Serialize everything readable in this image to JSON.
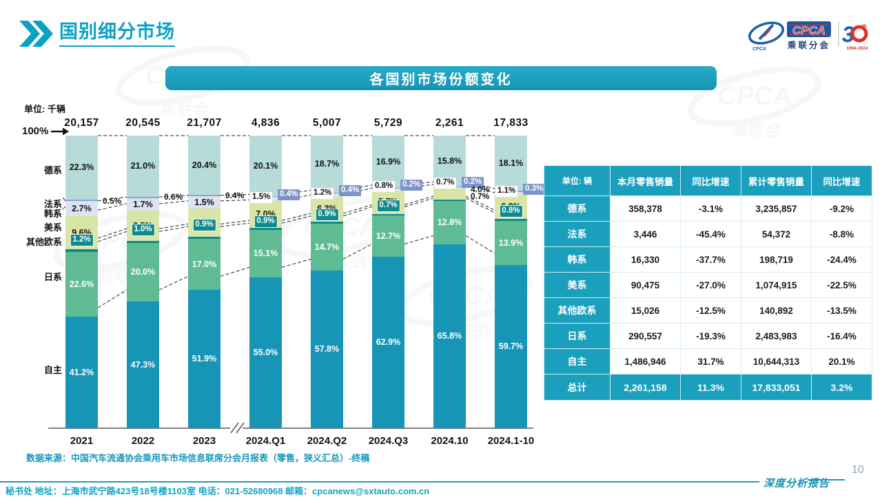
{
  "page": {
    "title": "国别细分市场",
    "unit_label": "单位: 千辆",
    "source_note": "数据来源：中国汽车流通协会乘用车市场信息联席分会月报表（零售，狭义汇总）-终稿",
    "report_tag": "深度分析报告",
    "page_number": "10",
    "footer": "秘书处  地址：上海市武宁路423号18号楼1103室  电话：021-52680968   邮箱：cpcanews@sxtauto.com.cn"
  },
  "logo": {
    "cpca": "CPCA",
    "cpca_small": "CPCA",
    "sub": "乘联分会",
    "anniv_3": "3",
    "anniv_th": "th",
    "anniv_years": "1994-2024"
  },
  "watermark": {
    "line1": "CPCA",
    "line2": "乘联会"
  },
  "colors": {
    "accent_teal": "#1a9fbc",
    "title_teal": "#0aa2c3"
  },
  "chart_data": {
    "type": "bar",
    "stacked": true,
    "title": "各国别市场份额变化",
    "unit": "千辆",
    "axis_top_label": "100%",
    "legend_position": "left",
    "categories": [
      "2021",
      "2022",
      "2023",
      "2024.Q1",
      "2024.Q2",
      "2024.Q3",
      "2024.10",
      "2024.1-10"
    ],
    "totals": [
      "20,157",
      "20,545",
      "21,707",
      "4,836",
      "5,007",
      "5,729",
      "2,261",
      "17,833"
    ],
    "series": [
      {
        "id": "german",
        "name": "德系",
        "color": "#b7dbd8",
        "label_color": "#111111",
        "values": [
          22.3,
          21.0,
          20.4,
          20.1,
          18.7,
          16.9,
          15.8,
          18.1
        ],
        "modes": [
          "in",
          "in",
          "in",
          "in",
          "in",
          "in",
          "in",
          "in"
        ]
      },
      {
        "id": "french",
        "name": "法系",
        "color": "#8ba3d1",
        "label_color": "#ffffff",
        "box_bg": "#7e94c8",
        "box_fg": "#ffffff",
        "box_align": "right",
        "values": [
          0.5,
          0.6,
          0.4,
          0.4,
          0.4,
          0.2,
          0.2,
          0.3
        ],
        "modes": [
          "callout",
          "callout",
          "callout",
          "box",
          "box",
          "box",
          "box",
          "box"
        ]
      },
      {
        "id": "korean",
        "name": "韩系",
        "color": "#dde3f1",
        "label_color": "#111111",
        "box_bg": "#ffffff",
        "box_fg": "#111111",
        "box_align": "left",
        "values": [
          2.7,
          1.7,
          1.5,
          1.5,
          1.2,
          0.8,
          0.7,
          1.1
        ],
        "modes": [
          "in",
          "in",
          "in",
          "box",
          "box",
          "box",
          "box",
          "box"
        ]
      },
      {
        "id": "american",
        "name": "美系",
        "color": "#d8e5a5",
        "label_color": "#111111",
        "values": [
          9.6,
          8.5,
          7.9,
          7.0,
          6.3,
          5.7,
          4.0,
          6.0
        ],
        "modes": [
          "in",
          "in",
          "in",
          "in",
          "in",
          "in",
          "callout",
          "in"
        ]
      },
      {
        "id": "other_eu",
        "name": "其他欧系",
        "color": "#0d8a8d",
        "label_color": "#ffffff",
        "box_bg": "#0d8a8d",
        "box_fg": "#ffffff",
        "box_align": "center",
        "values": [
          1.2,
          1.0,
          0.9,
          0.9,
          0.9,
          0.7,
          0.7,
          0.8
        ],
        "modes": [
          "box",
          "box",
          "box",
          "box",
          "box",
          "box",
          "callout",
          "box"
        ]
      },
      {
        "id": "japanese",
        "name": "日系",
        "color": "#5fbb94",
        "label_color": "#ffffff",
        "values": [
          22.6,
          20.0,
          17.0,
          15.1,
          14.7,
          12.7,
          12.8,
          13.9
        ],
        "modes": [
          "in",
          "in",
          "in",
          "in",
          "in",
          "in",
          "in",
          "in"
        ]
      },
      {
        "id": "domestic",
        "name": "自主",
        "color": "#1795b7",
        "label_color": "#ffffff",
        "values": [
          41.2,
          47.3,
          51.9,
          55.0,
          57.8,
          62.9,
          65.8,
          59.7
        ],
        "modes": [
          "in",
          "in",
          "in",
          "in",
          "in",
          "in",
          "in",
          "in"
        ]
      }
    ]
  },
  "table": {
    "headers": [
      "单位: 辆",
      "本月零售销量",
      "同比增速",
      "累计零售销量",
      "同比增速"
    ],
    "rows": [
      [
        "德系",
        "358,378",
        "-3.1%",
        "3,235,857",
        "-9.2%"
      ],
      [
        "法系",
        "3,446",
        "-45.4%",
        "54,372",
        "-8.8%"
      ],
      [
        "韩系",
        "16,330",
        "-37.7%",
        "198,719",
        "-24.4%"
      ],
      [
        "美系",
        "90,475",
        "-27.0%",
        "1,074,915",
        "-22.5%"
      ],
      [
        "其他欧系",
        "15,026",
        "-12.5%",
        "140,892",
        "-13.5%"
      ],
      [
        "日系",
        "290,557",
        "-19.3%",
        "2,483,983",
        "-16.4%"
      ],
      [
        "自主",
        "1,486,946",
        "31.7%",
        "10,644,313",
        "20.1%"
      ]
    ],
    "total_row": [
      "总计",
      "2,261,158",
      "11.3%",
      "17,833,051",
      "3.2%"
    ]
  }
}
